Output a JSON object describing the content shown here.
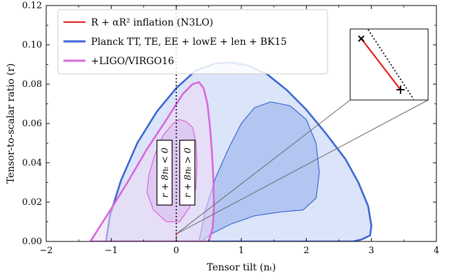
{
  "chart_data": {
    "type": "area",
    "xlabel": "Tensor tilt (nₜ)",
    "ylabel": "Tensor-to-scalar ratio (r)",
    "xlim": [
      -2,
      4
    ],
    "ylim": [
      0,
      0.12
    ],
    "x_ticks": [
      -2,
      -1,
      0,
      1,
      2,
      3,
      4
    ],
    "x_tick_labels": [
      "−2",
      "−1",
      "0",
      "1",
      "2",
      "3",
      "4"
    ],
    "y_ticks": [
      0,
      0.02,
      0.04,
      0.06,
      0.08,
      0.1,
      0.12
    ],
    "y_tick_labels": [
      "0.00",
      "0.02",
      "0.04",
      "0.06",
      "0.08",
      "0.10",
      "0.12"
    ],
    "grid": false,
    "legend_position": "top-left",
    "series": [
      {
        "name": "R + αR² inflation (N3LO)",
        "kind": "line",
        "color": "#e31a1c",
        "x": [
          0.0,
          0.002
        ],
        "y": [
          0.0045,
          0.003
        ]
      },
      {
        "name": "Planck TT, TE, EE + lowE + len + BK15",
        "kind": "contour",
        "color": "#3a66d4",
        "fill": "#dce4f9",
        "fill_inner": "#b3c6f1",
        "outer_95": {
          "x": [
            -1.08,
            -1.02,
            -0.85,
            -0.6,
            -0.3,
            0.0,
            0.3,
            0.6,
            0.85,
            1.1,
            1.4,
            1.7,
            2.0,
            2.3,
            2.6,
            2.8,
            2.95,
            3.0,
            2.98,
            2.85,
            2.72,
            2.65
          ],
          "y": [
            0.0,
            0.013,
            0.031,
            0.05,
            0.066,
            0.078,
            0.087,
            0.0905,
            0.091,
            0.0895,
            0.085,
            0.077,
            0.067,
            0.055,
            0.042,
            0.03,
            0.018,
            0.008,
            0.003,
            0.001,
            0.0,
            0.0
          ]
        },
        "inner_68": {
          "x": [
            0.35,
            0.45,
            0.6,
            0.8,
            1.0,
            1.2,
            1.45,
            1.75,
            2.0,
            2.15,
            2.2,
            2.15,
            1.95,
            1.6,
            1.2,
            0.85,
            0.55,
            0.38
          ],
          "y": [
            0.0,
            0.016,
            0.032,
            0.047,
            0.06,
            0.068,
            0.071,
            0.069,
            0.062,
            0.05,
            0.035,
            0.022,
            0.016,
            0.015,
            0.013,
            0.009,
            0.004,
            0.0
          ]
        }
      },
      {
        "name": "+LIGO/VIRGO16",
        "kind": "contour",
        "color": "#d966d9",
        "fill": "#ecd8f5",
        "fill_inner": "#d8b8ef",
        "outer_95": {
          "x": [
            -1.32,
            -1.05,
            -0.75,
            -0.45,
            -0.15,
            0.1,
            0.25,
            0.35,
            0.42,
            0.48,
            0.52,
            0.55,
            0.57,
            0.58,
            0.56,
            0.5
          ],
          "y": [
            0.0,
            0.014,
            0.03,
            0.047,
            0.062,
            0.075,
            0.08,
            0.081,
            0.078,
            0.07,
            0.058,
            0.045,
            0.032,
            0.018,
            0.007,
            0.0
          ]
        },
        "inner_68": {
          "x": [
            -0.45,
            -0.42,
            -0.33,
            -0.2,
            -0.05,
            0.05,
            0.15,
            0.25,
            0.3,
            0.32,
            0.3,
            0.2,
            0.05,
            -0.15,
            -0.35
          ],
          "y": [
            0.025,
            0.034,
            0.044,
            0.054,
            0.06,
            0.062,
            0.061,
            0.058,
            0.051,
            0.04,
            0.027,
            0.017,
            0.01,
            0.01,
            0.016
          ]
        }
      }
    ],
    "reference_line": {
      "type": "vertical",
      "x": 0,
      "style": "dotted"
    },
    "annotations": [
      {
        "text": "r + 8nₜ < 0",
        "x": -0.18,
        "y": 0.035,
        "rotation": -90
      },
      {
        "text": "r + 8nₜ > 0",
        "x": 0.17,
        "y": 0.035,
        "rotation": -90
      }
    ],
    "inset": {
      "zoom_region": {
        "x": 0.0,
        "y": 0.0038
      },
      "red_line": {
        "from": [
          0.0,
          0.0045
        ],
        "to": [
          0.002,
          0.003
        ]
      },
      "dotted_line": "r + 8nₜ = 0",
      "markers": [
        "start",
        "end"
      ]
    }
  }
}
